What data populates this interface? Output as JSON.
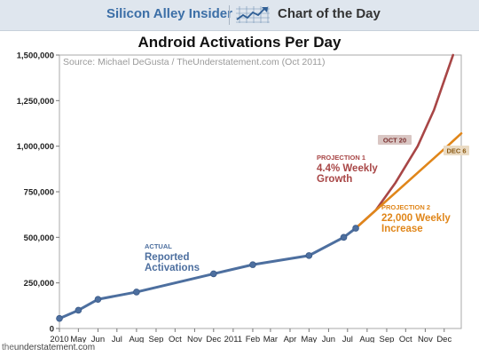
{
  "header": {
    "brand": "Silicon Alley Insider",
    "section": "Chart of the Day",
    "icon": "trend-line-chart-icon",
    "colors": {
      "band": "#dfe6ee",
      "brand": "#3c6fa7"
    }
  },
  "footer": {
    "source_prefix": "the",
    "source_rest": "understatement.com"
  },
  "chart_data": {
    "type": "line",
    "title": "Android Activations Per Day",
    "subtitle": "Source: Michael DeGusta / TheUnderstatement.com (Oct 2011)",
    "xlabel": "",
    "ylabel": "",
    "x_ticks": [
      "2010",
      "May",
      "Jun",
      "Jul",
      "Aug",
      "Sep",
      "Oct",
      "Nov",
      "Dec",
      "2011",
      "Feb",
      "Mar",
      "Apr",
      "May",
      "Jun",
      "Jul",
      "Aug",
      "Sep",
      "Oct",
      "Nov",
      "Dec"
    ],
    "y_ticks": [
      "0",
      "250,000",
      "500,000",
      "750,000",
      "1,000,000",
      "1,250,000",
      "1,500,000"
    ],
    "ylim": [
      0,
      1500000
    ],
    "grid": false,
    "series": [
      {
        "name": "Reported Activations",
        "label_small": "ACTUAL",
        "label_lines": [
          "Reported",
          "Activations"
        ],
        "color": "#4d6f9f",
        "points": [
          [
            "2010-04-01",
            55000
          ],
          [
            "2010-05-01",
            100000
          ],
          [
            "2010-06-01",
            160000
          ],
          [
            "2010-08-01",
            200000
          ],
          [
            "2010-12-01",
            300000
          ],
          [
            "2011-02-01",
            350000
          ],
          [
            "2011-05-01",
            400000
          ],
          [
            "2011-06-25",
            500000
          ],
          [
            "2011-07-14",
            550000
          ]
        ]
      },
      {
        "name": "4.4% Weekly Growth",
        "label_small": "PROJECTION 1",
        "label_lines": [
          "4.4% Weekly",
          "Growth"
        ],
        "color": "#a84646",
        "points": [
          [
            "2011-07-14",
            550000
          ],
          [
            "2011-08-15",
            650000
          ],
          [
            "2011-09-15",
            800000
          ],
          [
            "2011-10-20",
            1000000
          ],
          [
            "2011-11-15",
            1200000
          ],
          [
            "2011-12-15",
            1500000
          ]
        ]
      },
      {
        "name": "22,000 Weekly Increase",
        "label_small": "PROJECTION 2",
        "label_lines": [
          "22,000 Weekly",
          "Increase"
        ],
        "color": "#e0861a",
        "points": [
          [
            "2011-07-14",
            550000
          ],
          [
            "2011-12-06",
            1000000
          ],
          [
            "2011-12-28",
            1070000
          ]
        ]
      }
    ],
    "annotations": [
      {
        "text": "OCT 20",
        "x": "2011-10-20",
        "y": 1000000
      },
      {
        "text": "DEC 6",
        "x": "2011-12-06",
        "y": 1000000
      }
    ]
  }
}
